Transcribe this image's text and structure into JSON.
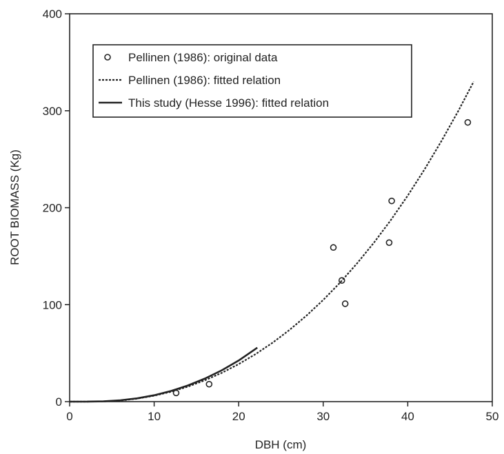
{
  "chart_data": {
    "type": "scatter",
    "title": "",
    "xlabel": "DBH (cm)",
    "ylabel": "ROOT BIOMASS (Kg)",
    "xlim": [
      0,
      50
    ],
    "ylim": [
      0,
      400
    ],
    "xticks": [
      0,
      10,
      20,
      30,
      40,
      50
    ],
    "yticks": [
      0,
      100,
      200,
      300,
      400
    ],
    "grid": false,
    "legend_position": "top-left",
    "series": [
      {
        "name": "Pellinen (1986): original data",
        "kind": "scatter",
        "marker": "open-circle",
        "color": "#222222",
        "x": [
          12.6,
          16.5,
          31.2,
          32.2,
          32.6,
          37.8,
          38.1,
          47.1
        ],
        "y": [
          9,
          18,
          159,
          125,
          101,
          164,
          207,
          288
        ]
      },
      {
        "name": "Pellinen (1986): fitted relation",
        "kind": "line",
        "style": "dotted",
        "color": "#222222",
        "x": [
          0,
          2,
          4,
          6,
          8,
          10,
          12,
          14,
          16,
          18,
          20,
          22,
          24,
          26,
          28,
          30,
          32,
          34,
          36,
          38,
          40,
          42,
          44,
          46,
          47.8
        ],
        "y": [
          0,
          0,
          0.2,
          1.1,
          3.1,
          6.1,
          10.2,
          15.5,
          22,
          29.7,
          38.7,
          49,
          60.7,
          73.9,
          88.6,
          104.9,
          122.8,
          142.5,
          164,
          187.3,
          212.5,
          239.7,
          268.9,
          300.2,
          330
        ]
      },
      {
        "name": "This study (Hesse 1996): fitted relation",
        "kind": "line",
        "style": "solid",
        "color": "#222222",
        "x": [
          0,
          2,
          4,
          6,
          8,
          10,
          12,
          14,
          16,
          18,
          20,
          22.2
        ],
        "y": [
          0,
          0,
          0.3,
          1.4,
          3.4,
          6.6,
          11,
          16.7,
          23.8,
          32.3,
          42.4,
          55.6
        ]
      }
    ]
  }
}
